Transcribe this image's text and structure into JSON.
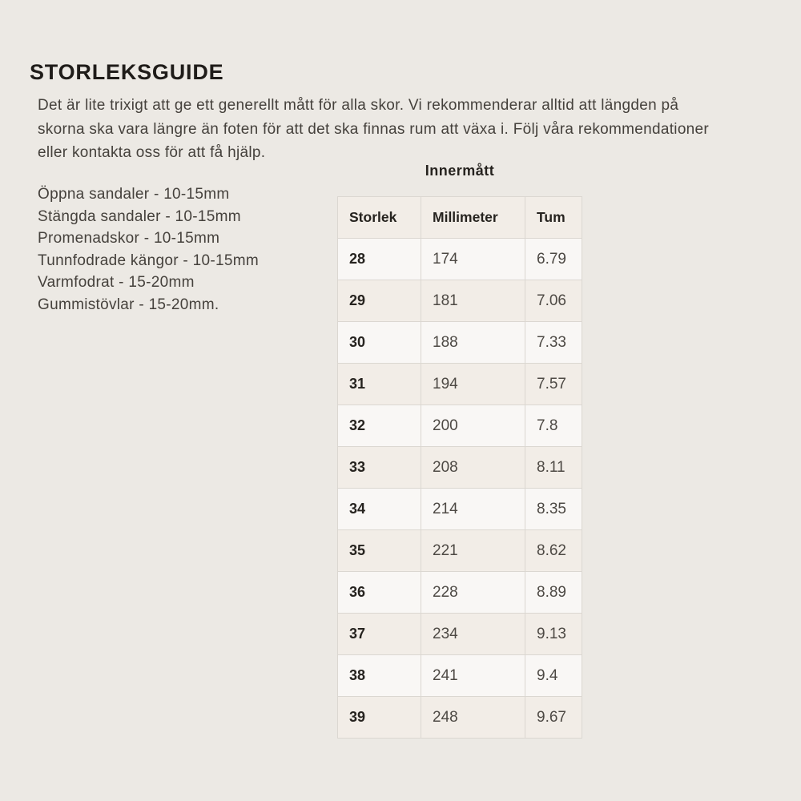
{
  "page": {
    "title": "STORLEKSGUIDE",
    "intro_lines": [
      "Det är lite trixigt att ge ett generellt mått för alla skor. Vi rekommenderar alltid att längden på",
      "skorna ska vara längre än foten för att det ska finnas rum att växa i. Följ våra rekommendationer",
      "eller kontakta oss för att få hjälp."
    ],
    "recommendations": [
      "Öppna sandaler - 10-15mm",
      "Stängda sandaler - 10-15mm",
      "Promenadskor - 10-15mm",
      "Tunnfodrade kängor - 10-15mm",
      "Varmfodrat - 15-20mm",
      "Gummistövlar - 15-20mm."
    ],
    "table": {
      "title": "Innermått",
      "columns": [
        "Storlek",
        "Millimeter",
        "Tum"
      ],
      "rows": [
        {
          "storlek": "28",
          "millimeter": "174",
          "tum": "6.79"
        },
        {
          "storlek": "29",
          "millimeter": "181",
          "tum": "7.06"
        },
        {
          "storlek": "30",
          "millimeter": "188",
          "tum": "7.33"
        },
        {
          "storlek": "31",
          "millimeter": "194",
          "tum": "7.57"
        },
        {
          "storlek": "32",
          "millimeter": "200",
          "tum": "7.8"
        },
        {
          "storlek": "33",
          "millimeter": "208",
          "tum": "8.11"
        },
        {
          "storlek": "34",
          "millimeter": "214",
          "tum": "8.35"
        },
        {
          "storlek": "35",
          "millimeter": "221",
          "tum": "8.62"
        },
        {
          "storlek": "36",
          "millimeter": "228",
          "tum": "8.89"
        },
        {
          "storlek": "37",
          "millimeter": "234",
          "tum": "9.13"
        },
        {
          "storlek": "38",
          "millimeter": "241",
          "tum": "9.4"
        },
        {
          "storlek": "39",
          "millimeter": "248",
          "tum": "9.67"
        }
      ]
    },
    "colors": {
      "background": "#ECE9E4",
      "row_beige": "#F2EDE7",
      "row_light": "#F9F7F5",
      "border": "#DBD7D1",
      "heading_text": "#1F1C19",
      "body_text": "#45413C",
      "value_text": "#4D4944"
    }
  }
}
